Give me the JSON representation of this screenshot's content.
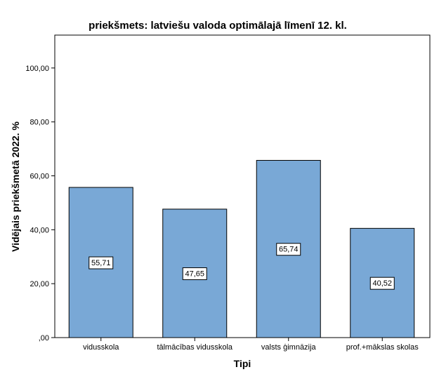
{
  "chart_data": {
    "type": "bar",
    "title": "priekšmets: latviešu valoda optimālajā līmenī 12. kl.",
    "xlabel": "Tipi",
    "ylabel": "Vidējais priekšmetā 2022. %",
    "categories": [
      "vidusskola",
      "tālmācības vidusskola",
      "valsts ģimnāzija",
      "prof.+mākslas skolas"
    ],
    "values": [
      55.71,
      47.65,
      65.74,
      40.52
    ],
    "value_labels": [
      "55,71",
      "47,65",
      "65,74",
      "40,52"
    ],
    "yticks": [
      0,
      20,
      40,
      60,
      80,
      100
    ],
    "ytick_labels": [
      ",00",
      "20,00",
      "40,00",
      "60,00",
      "80,00",
      "100,00"
    ],
    "ylim": [
      0,
      112.2
    ],
    "grid": false,
    "bar_color": "#79a8d6"
  }
}
